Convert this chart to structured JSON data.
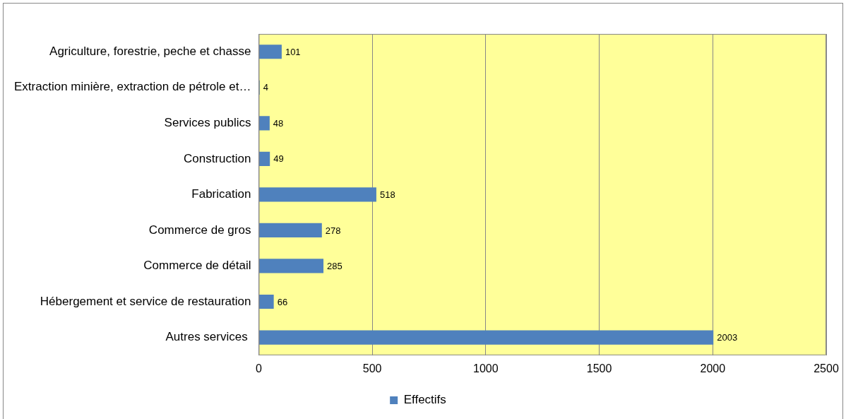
{
  "chart_data": {
    "type": "bar",
    "orientation": "horizontal",
    "categories": [
      "Agriculture, forestrie, peche et chasse",
      "Extraction minière, extraction de pétrole et…",
      "Services publics",
      "Construction",
      "Fabrication",
      "Commerce de gros",
      "Commerce de détail",
      "Hébergement et service de restauration",
      "Autres services "
    ],
    "series": [
      {
        "name": "Effectifs",
        "color": "#4f81bd",
        "values": [
          101,
          4,
          48,
          49,
          518,
          278,
          285,
          66,
          2003
        ]
      }
    ],
    "xlim": [
      0,
      2500
    ],
    "xticks": [
      0,
      500,
      1000,
      1500,
      2000,
      2500
    ],
    "grid": "x",
    "legend": "bottom",
    "data_labels": true
  }
}
